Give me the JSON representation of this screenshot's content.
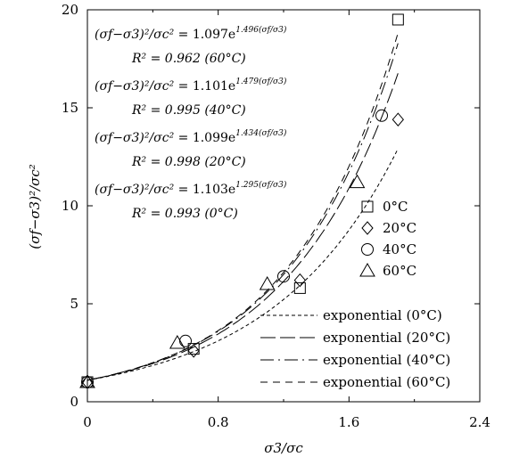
{
  "chart_data": {
    "type": "scatter",
    "xlabel": "σ3/σc",
    "ylabel": "(σf−σ3)²/σc²",
    "xlim": [
      0,
      2.4
    ],
    "ylim": [
      0,
      20
    ],
    "xticks": [
      "0",
      "0.8",
      "1.6",
      "2.4"
    ],
    "yticks": [
      "0",
      "5",
      "10",
      "15",
      "20"
    ],
    "grid": false,
    "series": [
      {
        "name": "0°C",
        "marker": "square",
        "x": [
          0.0,
          0.65,
          1.3,
          1.9
        ],
        "y": [
          1.0,
          2.7,
          5.8,
          19.5
        ]
      },
      {
        "name": "20°C",
        "marker": "diamond",
        "x": [
          0.0,
          0.65,
          1.3,
          1.9
        ],
        "y": [
          1.0,
          2.6,
          6.2,
          14.4
        ]
      },
      {
        "name": "40°C",
        "marker": "circle",
        "x": [
          0.0,
          0.6,
          1.2,
          1.8
        ],
        "y": [
          1.0,
          3.1,
          6.4,
          14.6
        ]
      },
      {
        "name": "60°C",
        "marker": "triangle",
        "x": [
          0.0,
          0.55,
          1.1,
          1.65
        ],
        "y": [
          1.0,
          3.0,
          6.0,
          11.2
        ]
      }
    ],
    "fits": [
      {
        "name": "exponential (0°C)",
        "a": 1.103,
        "b": 1.295,
        "dash": "4,3"
      },
      {
        "name": "exponential (20°C)",
        "a": 1.099,
        "b": 1.434,
        "dash": "17,5"
      },
      {
        "name": "exponential (40°C)",
        "a": 1.101,
        "b": 1.479,
        "dash": "15,5,2,5"
      },
      {
        "name": "exponential (60°C)",
        "a": 1.097,
        "b": 1.496,
        "dash": "8,6"
      }
    ],
    "equations": [
      {
        "lhs": "(σf−σ3)²/σc² =",
        "coef": "1.097e",
        "exp": "1.496(σf/σ3)",
        "r2": "R² =  0.962 (60°C)"
      },
      {
        "lhs": "(σf−σ3)²/σc² =",
        "coef": "1.101e",
        "exp": "1.479(σf/σ3)",
        "r2": "R² =  0.995 (40°C)"
      },
      {
        "lhs": "(σf−σ3)²/σc² =",
        "coef": "1.099e",
        "exp": "1.434(σf/σ3)",
        "r2": "R² =  0.998 (20°C)"
      },
      {
        "lhs": "(σf−σ3)²/σc² =",
        "coef": "1.103e",
        "exp": "1.295(σf/σ3)",
        "r2": "R² =  0.993 (0°C)"
      }
    ],
    "legend_position": "right"
  }
}
